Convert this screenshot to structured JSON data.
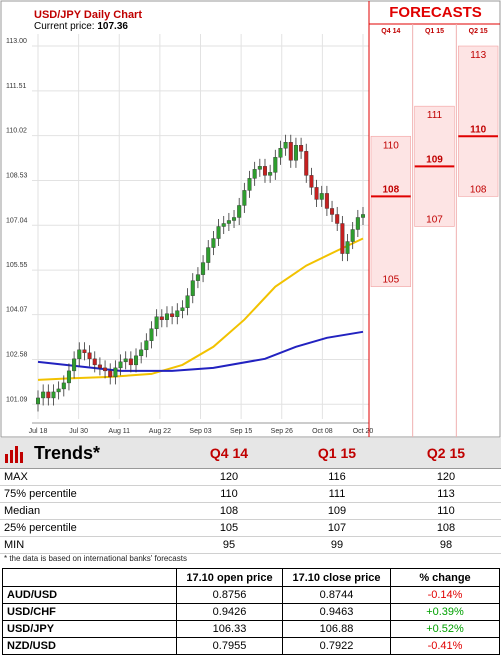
{
  "chart": {
    "title": "USD/JPY Daily Chart",
    "price_label": "Current price:",
    "price_value": "107.36",
    "forecasts_title": "FORECASTS"
  },
  "colors": {
    "candle_up": "#2e9e2e",
    "candle_down": "#c62020",
    "ma_fast": "#f2c200",
    "ma_slow": "#2222c0",
    "forecast_fill": "#fde4e4",
    "forecast_line": "#e00000",
    "accent": "#c00000"
  },
  "chart_data": {
    "type": "line",
    "title": "USD/JPY Daily Chart",
    "y_ticks": [
      "113.00",
      "111.51",
      "110.02",
      "108.53",
      "107.04",
      "105.55",
      "104.07",
      "102.58",
      "101.09"
    ],
    "ylim": [
      100.6,
      113.4
    ],
    "x_ticks": [
      "Jul 18",
      "Jul 30",
      "Aug 11",
      "Aug 22",
      "Sep 03",
      "Sep 15",
      "Sep 26",
      "Oct 08",
      "Oct 20"
    ],
    "candles_close": [
      101.3,
      101.5,
      101.3,
      101.5,
      101.6,
      101.8,
      102.2,
      102.6,
      102.9,
      102.8,
      102.6,
      102.4,
      102.3,
      102.2,
      102.0,
      102.3,
      102.5,
      102.6,
      102.4,
      102.7,
      102.9,
      103.2,
      103.6,
      104.0,
      103.9,
      104.1,
      104.0,
      104.2,
      104.3,
      104.7,
      105.2,
      105.4,
      105.8,
      106.3,
      106.6,
      107.0,
      107.1,
      107.2,
      107.3,
      107.7,
      108.2,
      108.6,
      108.9,
      109.0,
      108.7,
      108.8,
      109.3,
      109.6,
      109.8,
      109.2,
      109.7,
      109.5,
      108.7,
      108.3,
      107.9,
      108.1,
      107.6,
      107.4,
      107.1,
      106.1,
      106.5,
      106.9,
      107.3,
      107.4
    ],
    "candles_open": [
      101.1,
      101.3,
      101.5,
      101.3,
      101.5,
      101.6,
      101.8,
      102.2,
      102.6,
      102.9,
      102.8,
      102.6,
      102.4,
      102.3,
      102.2,
      102.0,
      102.3,
      102.5,
      102.6,
      102.4,
      102.7,
      102.9,
      103.2,
      103.6,
      104.0,
      103.9,
      104.1,
      104.0,
      104.2,
      104.3,
      104.7,
      105.2,
      105.4,
      105.8,
      106.3,
      106.6,
      107.0,
      107.1,
      107.2,
      107.3,
      107.7,
      108.2,
      108.6,
      108.9,
      109.0,
      108.7,
      108.8,
      109.3,
      109.6,
      109.8,
      109.2,
      109.7,
      109.5,
      108.7,
      108.3,
      107.9,
      108.1,
      107.6,
      107.4,
      107.1,
      106.1,
      106.5,
      106.9,
      107.3
    ],
    "series": [
      {
        "name": "MA fast",
        "color": "#f2c200",
        "values": [
          [
            0,
            101.9
          ],
          [
            6,
            101.95
          ],
          [
            14,
            102.0
          ],
          [
            22,
            102.1
          ],
          [
            28,
            102.4
          ],
          [
            34,
            103.0
          ],
          [
            40,
            103.9
          ],
          [
            46,
            105.0
          ],
          [
            52,
            105.7
          ],
          [
            58,
            106.2
          ],
          [
            63,
            106.6
          ]
        ]
      },
      {
        "name": "MA slow",
        "color": "#2222c0",
        "values": [
          [
            0,
            102.5
          ],
          [
            8,
            102.35
          ],
          [
            16,
            102.2
          ],
          [
            26,
            102.2
          ],
          [
            34,
            102.3
          ],
          [
            44,
            102.6
          ],
          [
            50,
            103.0
          ],
          [
            56,
            103.3
          ],
          [
            63,
            103.5
          ]
        ]
      }
    ],
    "forecasts": [
      {
        "period": "Q4 14",
        "max": 110,
        "median": 108,
        "min": 105
      },
      {
        "period": "Q1 15",
        "max": 111,
        "median": 109,
        "min": 107
      },
      {
        "period": "Q2 15",
        "max": 113,
        "median": 110,
        "min": 108
      }
    ]
  },
  "forecast_headers": [
    "Q4 14",
    "Q1 15",
    "Q2 15"
  ],
  "trends": {
    "title": "Trends*",
    "headers": [
      "Q4 14",
      "Q1 15",
      "Q2 15"
    ],
    "rows": [
      {
        "label": "MAX",
        "values": [
          "120",
          "116",
          "120"
        ]
      },
      {
        "label": "75% percentile",
        "values": [
          "110",
          "111",
          "113"
        ]
      },
      {
        "label": "Median",
        "values": [
          "108",
          "109",
          "110"
        ]
      },
      {
        "label": "25% percentile",
        "values": [
          "105",
          "107",
          "108"
        ]
      },
      {
        "label": "MIN",
        "values": [
          "95",
          "99",
          "98"
        ]
      }
    ],
    "footnote": "* the data is based on international banks' forecasts"
  },
  "fx": {
    "headers": [
      "",
      "17.10 open price",
      "17.10 close price",
      "% change"
    ],
    "rows": [
      {
        "pair": "AUD/USD",
        "open": "0.8756",
        "close": "0.8744",
        "change": "-0.14%",
        "dir": "neg"
      },
      {
        "pair": "USD/CHF",
        "open": "0.9426",
        "close": "0.9463",
        "change": "+0.39%",
        "dir": "pos"
      },
      {
        "pair": "USD/JPY",
        "open": "106.33",
        "close": "106.88",
        "change": "+0.52%",
        "dir": "pos"
      },
      {
        "pair": "NZD/USD",
        "open": "0.7955",
        "close": "0.7922",
        "change": "-0.41%",
        "dir": "neg"
      }
    ]
  }
}
